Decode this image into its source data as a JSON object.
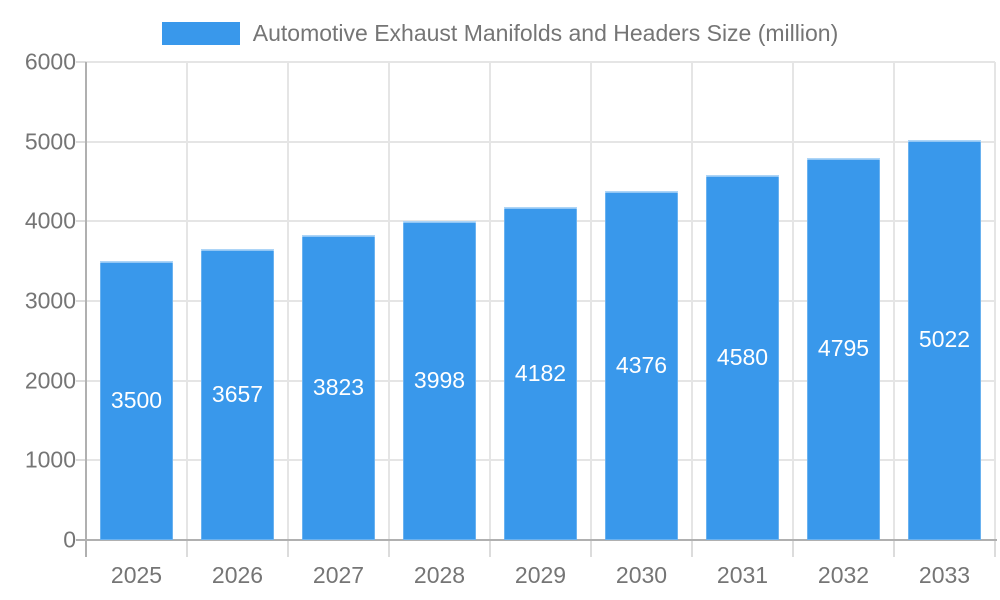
{
  "legend": {
    "label": "Automotive Exhaust Manifolds and Headers Size (million)"
  },
  "chart_data": {
    "type": "bar",
    "title": "Automotive Exhaust Manifolds and Headers Size (million)",
    "categories": [
      "2025",
      "2026",
      "2027",
      "2028",
      "2029",
      "2030",
      "2031",
      "2032",
      "2033"
    ],
    "values": [
      3500,
      3657,
      3823,
      3998,
      4182,
      4376,
      4580,
      4795,
      5022
    ],
    "xlabel": "",
    "ylabel": "",
    "ylim": [
      0,
      6000
    ],
    "yticks": [
      0,
      1000,
      2000,
      3000,
      4000,
      5000,
      6000
    ],
    "grid": true,
    "legend_position": "top",
    "bar_color": "#3998EB",
    "value_label_color": "#ffffff",
    "axis_text_color": "#757575",
    "grid_color": "#e5e5e5",
    "axis_line_color": "#b0b0b0"
  }
}
